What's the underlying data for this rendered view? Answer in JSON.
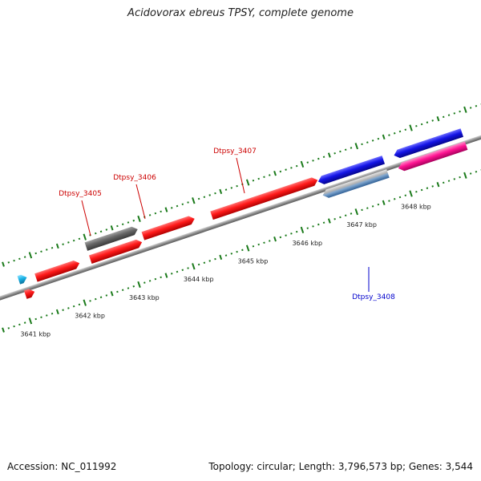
{
  "title": "Acidovorax ebreus TPSY, complete genome",
  "footer": {
    "accession": "Accession: NC_011992",
    "summary": "Topology: circular; Length: 3,796,573 bp; Genes: 3,544"
  },
  "colors": {
    "forward": "#ff1a1a",
    "reverse": "#1414e6",
    "pseudo": "#666666",
    "rna": "#1ab4e8",
    "pink": "#ff1493",
    "steel": "#4a7fb5",
    "tick": "#1a7a1a",
    "backbone": "#8c8c8c",
    "label_forward": "#cc0000",
    "label_reverse": "#0000cc"
  },
  "scale": {
    "unit": "kbp",
    "ticks": [
      {
        "kbp": 3641,
        "label": "3641 kbp"
      },
      {
        "kbp": 3642,
        "label": "3642 kbp"
      },
      {
        "kbp": 3643,
        "label": "3643 kbp"
      },
      {
        "kbp": 3644,
        "label": "3644 kbp"
      },
      {
        "kbp": 3645,
        "label": "3645 kbp"
      },
      {
        "kbp": 3646,
        "label": "3646 kbp"
      },
      {
        "kbp": 3647,
        "label": "3647 kbp"
      },
      {
        "kbp": 3648,
        "label": "3648 kbp"
      }
    ]
  },
  "genes": [
    {
      "id": "g-left-cyan",
      "start": 3640.85,
      "end": 3641.0,
      "strand": "forward",
      "color": "rna"
    },
    {
      "id": "g-left-red-2",
      "start": 3640.88,
      "end": 3641.05,
      "strand": "forward",
      "color": "forward"
    },
    {
      "id": "g-left-red-1",
      "start": 3641.15,
      "end": 3641.95,
      "strand": "forward",
      "color": "forward"
    },
    {
      "id": "g-dtpsy-3405",
      "start": 3642.15,
      "end": 3643.1,
      "strand": "forward",
      "color": "pseudo",
      "label": "Dtpsy_3405"
    },
    {
      "id": "g-red-a",
      "start": 3642.15,
      "end": 3643.1,
      "strand": "forward",
      "color": "forward"
    },
    {
      "id": "g-dtpsy-3406",
      "start": 3643.15,
      "end": 3644.1,
      "strand": "forward",
      "color": "forward",
      "label": "Dtpsy_3406"
    },
    {
      "id": "g-dtpsy-3407",
      "start": 3644.4,
      "end": 3646.35,
      "strand": "forward",
      "color": "forward",
      "label": "Dtpsy_3407"
    },
    {
      "id": "g-blue-1",
      "start": 3646.35,
      "end": 3647.55,
      "strand": "reverse",
      "color": "reverse"
    },
    {
      "id": "g-dtpsy-3408",
      "start": 3646.35,
      "end": 3647.55,
      "strand": "reverse",
      "color": "steel",
      "label": "Dtpsy_3408"
    },
    {
      "id": "g-blue-2",
      "start": 3647.75,
      "end": 3649.0,
      "strand": "reverse",
      "color": "reverse"
    },
    {
      "id": "g-pink",
      "start": 3647.75,
      "end": 3649.0,
      "strand": "reverse",
      "color": "pink"
    }
  ]
}
